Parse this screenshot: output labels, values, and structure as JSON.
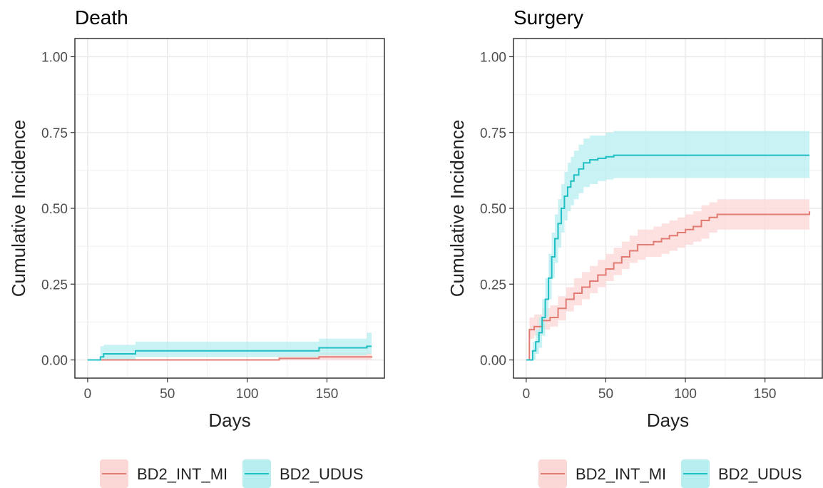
{
  "colors": {
    "BD2_INT_MI": "#e27c73",
    "BD2_INT_MI_band": "#fbd7d5",
    "BD2_UDUS": "#1fbfc4",
    "BD2_UDUS_band": "#b7eef0",
    "grid": "#ebebeb",
    "panel_border": "#333333"
  },
  "chart_data": [
    {
      "type": "line",
      "title": "Death",
      "xlabel": "Days",
      "ylabel": "Cumulative Incidence",
      "xlim": [
        -8,
        186
      ],
      "ylim": [
        -0.06,
        1.06
      ],
      "xticks": [
        0,
        50,
        100,
        150
      ],
      "xtick_labels": [
        "0",
        "50",
        "100",
        "150"
      ],
      "yticks": [
        0,
        0.25,
        0.5,
        0.75,
        1
      ],
      "ytick_labels": [
        "0.00",
        "0.25",
        "0.50",
        "0.75",
        "1.00"
      ],
      "grid": true,
      "step": true,
      "series": [
        {
          "name": "BD2_INT_MI",
          "x": [
            0,
            120,
            145,
            178
          ],
          "y": [
            0,
            0.005,
            0.01,
            0.012
          ],
          "lower": [
            0,
            0,
            0,
            0
          ],
          "upper": [
            0,
            0.012,
            0.025,
            0.035
          ]
        },
        {
          "name": "BD2_UDUS",
          "x": [
            0,
            8,
            10,
            30,
            145,
            175,
            178
          ],
          "y": [
            0,
            0.01,
            0.02,
            0.03,
            0.04,
            0.045,
            0.045
          ],
          "lower": [
            0,
            0,
            0,
            0.01,
            0.015,
            0.02,
            0.02
          ],
          "upper": [
            0,
            0.045,
            0.05,
            0.06,
            0.07,
            0.09,
            0.09
          ]
        }
      ],
      "legend": {
        "position": "bottom",
        "items": [
          {
            "key": "BD2_INT_MI",
            "label": "BD2_INT_MI"
          },
          {
            "key": "BD2_UDUS",
            "label": "BD2_UDUS"
          }
        ]
      }
    },
    {
      "type": "line",
      "title": "Surgery",
      "xlabel": "Days",
      "ylabel": "Cumulative Incidence",
      "xlim": [
        -8,
        186
      ],
      "ylim": [
        -0.06,
        1.06
      ],
      "xticks": [
        0,
        50,
        100,
        150
      ],
      "xtick_labels": [
        "0",
        "50",
        "100",
        "150"
      ],
      "yticks": [
        0,
        0.25,
        0.5,
        0.75,
        1
      ],
      "ytick_labels": [
        "0.00",
        "0.25",
        "0.50",
        "0.75",
        "1.00"
      ],
      "grid": true,
      "step": true,
      "series": [
        {
          "name": "BD2_INT_MI",
          "x": [
            0,
            2,
            5,
            10,
            15,
            20,
            25,
            30,
            35,
            40,
            45,
            50,
            55,
            60,
            65,
            70,
            75,
            80,
            85,
            90,
            95,
            100,
            105,
            110,
            115,
            120,
            150,
            178
          ],
          "y": [
            0.0,
            0.1,
            0.11,
            0.13,
            0.14,
            0.17,
            0.2,
            0.22,
            0.24,
            0.26,
            0.28,
            0.3,
            0.32,
            0.34,
            0.36,
            0.38,
            0.38,
            0.39,
            0.4,
            0.41,
            0.42,
            0.43,
            0.44,
            0.46,
            0.47,
            0.48,
            0.48,
            0.49
          ],
          "lower": [
            0.0,
            0.07,
            0.08,
            0.1,
            0.11,
            0.13,
            0.16,
            0.18,
            0.2,
            0.22,
            0.24,
            0.26,
            0.28,
            0.3,
            0.32,
            0.33,
            0.34,
            0.34,
            0.35,
            0.36,
            0.37,
            0.38,
            0.39,
            0.4,
            0.42,
            0.43,
            0.43,
            0.43
          ],
          "upper": [
            0.0,
            0.14,
            0.15,
            0.17,
            0.18,
            0.21,
            0.24,
            0.27,
            0.29,
            0.31,
            0.33,
            0.35,
            0.37,
            0.39,
            0.41,
            0.43,
            0.43,
            0.44,
            0.45,
            0.46,
            0.47,
            0.48,
            0.49,
            0.51,
            0.52,
            0.53,
            0.53,
            0.54
          ]
        },
        {
          "name": "BD2_UDUS",
          "x": [
            0,
            2,
            4,
            6,
            8,
            10,
            12,
            14,
            16,
            18,
            20,
            22,
            24,
            26,
            28,
            30,
            33,
            36,
            40,
            45,
            50,
            55,
            60,
            178
          ],
          "y": [
            0.0,
            0.0,
            0.03,
            0.06,
            0.09,
            0.14,
            0.2,
            0.27,
            0.34,
            0.4,
            0.45,
            0.5,
            0.54,
            0.57,
            0.59,
            0.61,
            0.63,
            0.65,
            0.66,
            0.665,
            0.67,
            0.675,
            0.675,
            0.675
          ],
          "lower": [
            0.0,
            0.0,
            0.0,
            0.02,
            0.04,
            0.08,
            0.14,
            0.2,
            0.27,
            0.32,
            0.37,
            0.42,
            0.46,
            0.49,
            0.51,
            0.53,
            0.55,
            0.57,
            0.58,
            0.59,
            0.595,
            0.6,
            0.6,
            0.6
          ],
          "upper": [
            0.0,
            0.0,
            0.06,
            0.1,
            0.14,
            0.2,
            0.27,
            0.35,
            0.42,
            0.48,
            0.53,
            0.58,
            0.62,
            0.65,
            0.67,
            0.69,
            0.71,
            0.73,
            0.74,
            0.74,
            0.75,
            0.755,
            0.755,
            0.755
          ]
        }
      ],
      "legend": {
        "position": "bottom",
        "items": [
          {
            "key": "BD2_INT_MI",
            "label": "BD2_INT_MI"
          },
          {
            "key": "BD2_UDUS",
            "label": "BD2_UDUS"
          }
        ]
      }
    }
  ]
}
